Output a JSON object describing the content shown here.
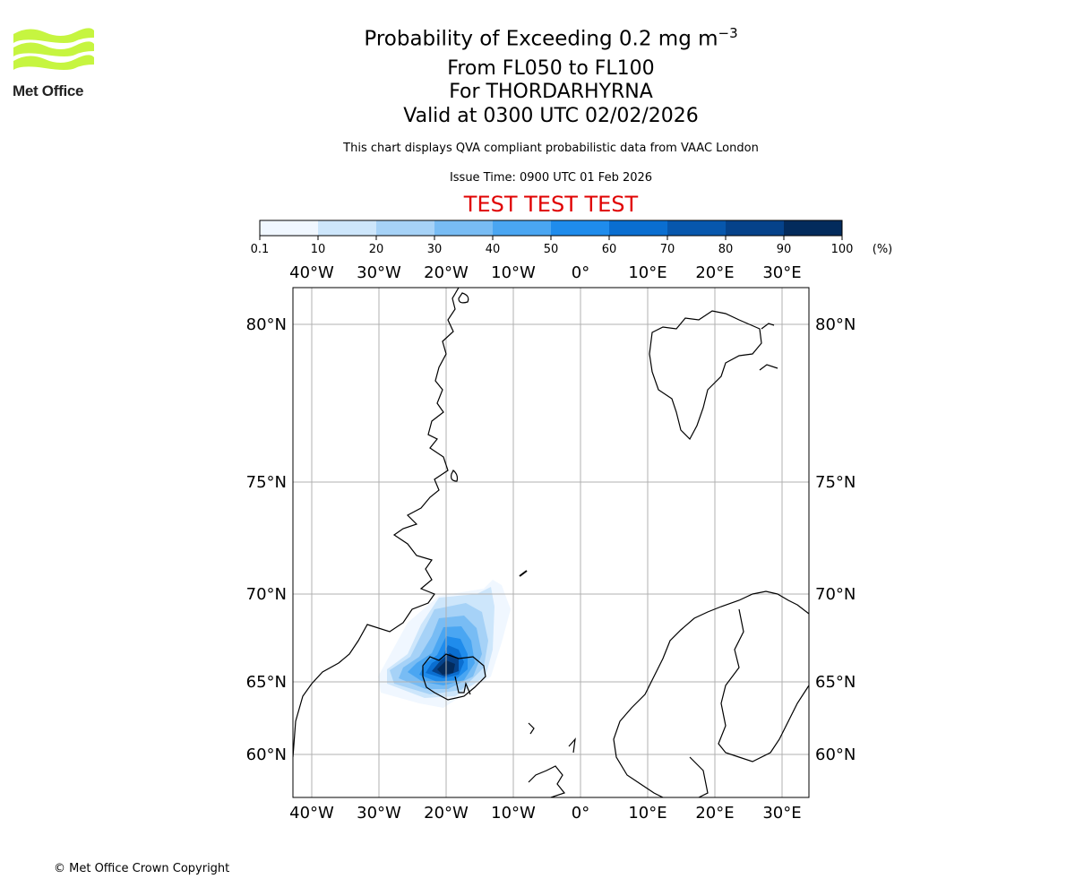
{
  "header": {
    "title_main": "Probability of Exceeding 0.2 mg m",
    "title_sup": "−3",
    "subtitle_1": "From FL050 to FL100",
    "subtitle_2": "For THORDARHYRNA",
    "subtitle_3": "Valid at 0300 UTC 02/02/2026",
    "disclaimer": "This chart displays QVA compliant probabilistic data from VAAC London",
    "issue_time": "Issue Time: 0900 UTC 01 Feb 2026",
    "test_banner": "TEST TEST TEST"
  },
  "logo": {
    "text": "Met Office",
    "color": "#c6f540"
  },
  "colorbar": {
    "ticks": [
      "0.1",
      "10",
      "20",
      "30",
      "40",
      "50",
      "60",
      "70",
      "80",
      "90",
      "100"
    ],
    "unit": "(%)",
    "colors": [
      "#f0f7ff",
      "#cde6fb",
      "#a6d2f7",
      "#78bcf4",
      "#4aa6f2",
      "#1f8cec",
      "#0a6ed0",
      "#0757ad",
      "#05428a",
      "#032b5c"
    ]
  },
  "map": {
    "lon_labels": [
      "40°W",
      "30°W",
      "20°W",
      "10°W",
      "0°",
      "10°E",
      "20°E",
      "30°E"
    ],
    "lat_labels": [
      "80°N",
      "75°N",
      "70°N",
      "65°N",
      "60°N"
    ],
    "grid_visible": true,
    "plume_center": "Iceland"
  },
  "footer": {
    "copyright": "© Met Office Crown Copyright"
  }
}
